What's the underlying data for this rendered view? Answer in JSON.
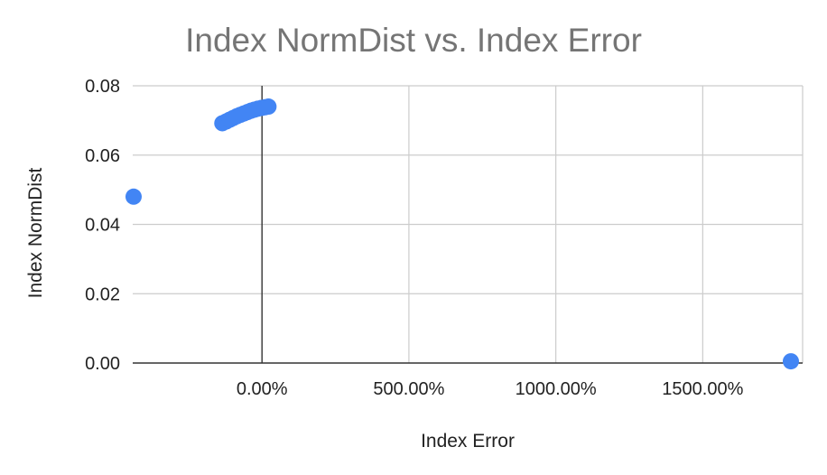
{
  "chart_data": {
    "type": "scatter",
    "title": "Index NormDist vs. Index Error",
    "xlabel": "Index Error",
    "ylabel": "Index NormDist",
    "xlim": [
      -440,
      1840
    ],
    "ylim": [
      0,
      0.08
    ],
    "x_ticks": [
      {
        "value": 0,
        "label": "0.00%"
      },
      {
        "value": 500,
        "label": "500.00%"
      },
      {
        "value": 1000,
        "label": "1000.00%"
      },
      {
        "value": 1500,
        "label": "1500.00%"
      }
    ],
    "y_ticks": [
      {
        "value": 0,
        "label": "0.00"
      },
      {
        "value": 0.02,
        "label": "0.02"
      },
      {
        "value": 0.04,
        "label": "0.04"
      },
      {
        "value": 0.06,
        "label": "0.06"
      },
      {
        "value": 0.08,
        "label": "0.08"
      }
    ],
    "grid": true,
    "legend": "none",
    "marker_color": "#4285f4",
    "series": [
      {
        "points": [
          {
            "x": -437,
            "y": 0.048
          },
          {
            "x": -135,
            "y": 0.0692
          },
          {
            "x": -122,
            "y": 0.0697
          },
          {
            "x": -110,
            "y": 0.0702
          },
          {
            "x": -98,
            "y": 0.0707
          },
          {
            "x": -86,
            "y": 0.0712
          },
          {
            "x": -74,
            "y": 0.0716
          },
          {
            "x": -62,
            "y": 0.072
          },
          {
            "x": -50,
            "y": 0.0724
          },
          {
            "x": -38,
            "y": 0.0728
          },
          {
            "x": -26,
            "y": 0.0731
          },
          {
            "x": -14,
            "y": 0.0734
          },
          {
            "x": -2,
            "y": 0.0736
          },
          {
            "x": 10,
            "y": 0.0738
          },
          {
            "x": 22,
            "y": 0.074
          },
          {
            "x": 1800,
            "y": 0.0005
          }
        ]
      }
    ]
  }
}
